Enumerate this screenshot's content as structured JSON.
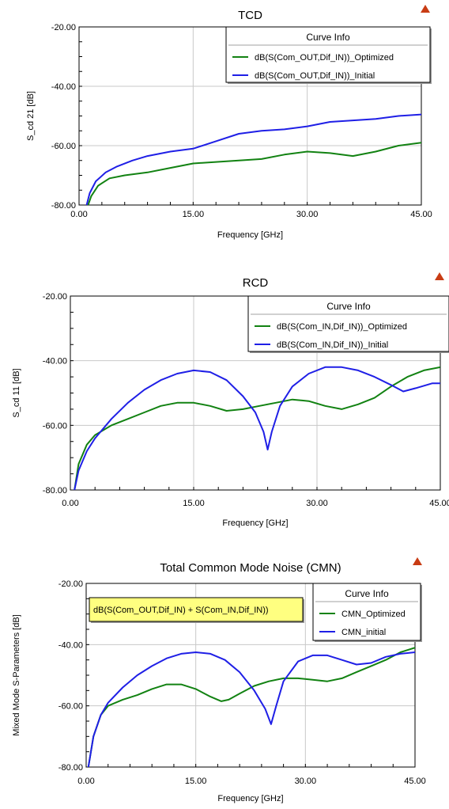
{
  "accent_colors": {
    "optimized": "#128212",
    "initial": "#1f1fe6",
    "annotation_bg": "#ffff80"
  },
  "chart_data": [
    {
      "type": "line",
      "title": "TCD",
      "xlabel": "Frequency [GHz]",
      "ylabel": "S_cd 21 [dB]",
      "xlim": [
        0,
        45
      ],
      "ylim": [
        -80,
        -20
      ],
      "xticks": [
        0,
        15,
        30,
        45
      ],
      "yticks": [
        -80,
        -60,
        -40,
        -20
      ],
      "xtick_labels": [
        "0.00",
        "15.00",
        "30.00",
        "45.00"
      ],
      "ytick_labels": [
        "-80.00",
        "-60.00",
        "-40.00",
        "-20.00"
      ],
      "grid": true,
      "legend_title": "Curve Info",
      "legend_placement": "top-right",
      "series": [
        {
          "name": "dB(S(Com_OUT,Dif_IN))_Optimized",
          "color": "#128212",
          "x": [
            1.2,
            1.6,
            2.5,
            4,
            6,
            9,
            12,
            15,
            18,
            21,
            24,
            27,
            30,
            33,
            36,
            39,
            42,
            45
          ],
          "y": [
            -80,
            -77,
            -73.5,
            -71,
            -70,
            -69,
            -67.5,
            -66,
            -65.5,
            -65,
            -64.5,
            -63,
            -62,
            -62.5,
            -63.5,
            -62,
            -60,
            -59
          ]
        },
        {
          "name": "dB(S(Com_OUT,Dif_IN))_Initial",
          "color": "#1f1fe6",
          "x": [
            1.0,
            1.4,
            2.2,
            3.5,
            5,
            7,
            9,
            12,
            15,
            18,
            21,
            24,
            27,
            30,
            33,
            36,
            39,
            42,
            45
          ],
          "y": [
            -80,
            -76,
            -72,
            -69,
            -67,
            -65,
            -63.5,
            -62,
            -61,
            -58.5,
            -56,
            -55,
            -54.5,
            -53.5,
            -52,
            -51.5,
            -51,
            -50,
            -49.5
          ]
        }
      ]
    },
    {
      "type": "line",
      "title": "RCD",
      "xlabel": "Frequency [GHz]",
      "ylabel": "S_cd 11 [dB]",
      "xlim": [
        0,
        45
      ],
      "ylim": [
        -80,
        -20
      ],
      "xticks": [
        0,
        15,
        30,
        45
      ],
      "yticks": [
        -80,
        -60,
        -40,
        -20
      ],
      "xtick_labels": [
        "0.00",
        "15.00",
        "30.00",
        "45.00"
      ],
      "ytick_labels": [
        "-80.00",
        "-60.00",
        "-40.00",
        "-20.00"
      ],
      "grid": true,
      "legend_title": "Curve Info",
      "legend_placement": "top-right",
      "series": [
        {
          "name": "dB(S(Com_IN,Dif_IN))_Optimized",
          "color": "#128212",
          "x": [
            0.5,
            1,
            2,
            3,
            5,
            7,
            9,
            11,
            13,
            15,
            17,
            19,
            21,
            23,
            25,
            27,
            29,
            31,
            33,
            35,
            37,
            39,
            41,
            43,
            45
          ],
          "y": [
            -80,
            -72,
            -66,
            -63,
            -60,
            -58,
            -56,
            -54,
            -53,
            -53,
            -54,
            -55.5,
            -55,
            -54,
            -53,
            -52,
            -52.5,
            -54,
            -55,
            -53.5,
            -51.5,
            -48,
            -45,
            -43,
            -42
          ]
        },
        {
          "name": "dB(S(Com_IN,Dif_IN))_Initial",
          "color": "#1f1fe6",
          "x": [
            0.5,
            1,
            2,
            3,
            5,
            7,
            9,
            11,
            13,
            15,
            17,
            19,
            21,
            22.5,
            23.5,
            24,
            24.5,
            25.5,
            27,
            29,
            31,
            33,
            35,
            37,
            39,
            40.5,
            42,
            44,
            45
          ],
          "y": [
            -80,
            -74,
            -68,
            -64,
            -58,
            -53,
            -49,
            -46,
            -44,
            -43,
            -43.5,
            -46,
            -51,
            -56,
            -62,
            -67.5,
            -62,
            -54,
            -48,
            -44,
            -42,
            -42,
            -43,
            -45,
            -47.5,
            -49.5,
            -48.5,
            -47,
            -47
          ]
        }
      ]
    },
    {
      "type": "line",
      "title": "Total Common Mode Noise (CMN)",
      "xlabel": "Frequency [GHz]",
      "ylabel": "Mixed Mode S-Parameters [dB]",
      "xlim": [
        0,
        45
      ],
      "ylim": [
        -80,
        -20
      ],
      "xticks": [
        0,
        15,
        30,
        45
      ],
      "yticks": [
        -80,
        -60,
        -40,
        -20
      ],
      "xtick_labels": [
        "0.00",
        "15.00",
        "30.00",
        "45.00"
      ],
      "ytick_labels": [
        "-80.00",
        "-60.00",
        "-40.00",
        "-20.00"
      ],
      "grid": true,
      "legend_title": "Curve Info",
      "legend_placement": "top-right",
      "annotation": "dB(S(Com_OUT,Dif_IN) + S(Com_IN,Dif_IN))",
      "series": [
        {
          "name": "CMN_Optimized",
          "color": "#128212",
          "x": [
            0.3,
            1,
            2,
            3,
            5,
            7,
            9,
            11,
            13,
            15,
            17,
            18.5,
            19.5,
            21,
            23,
            25,
            27,
            29,
            31,
            33,
            35,
            37,
            39,
            41,
            43,
            45
          ],
          "y": [
            -80,
            -70,
            -63,
            -60,
            -58,
            -56.5,
            -54.5,
            -53,
            -53,
            -54.5,
            -57,
            -58.5,
            -58,
            -56,
            -53.5,
            -52,
            -51,
            -51,
            -51.5,
            -52,
            -51,
            -49,
            -47,
            -45,
            -42.5,
            -41
          ]
        },
        {
          "name": "CMN_initial",
          "color": "#1f1fe6",
          "x": [
            0.3,
            1,
            2,
            3,
            5,
            7,
            9,
            11,
            13,
            15,
            17,
            19,
            21,
            23,
            24.5,
            25.3,
            26,
            27,
            29,
            31,
            33,
            35,
            37,
            39,
            41,
            43,
            45
          ],
          "y": [
            -80,
            -70,
            -63,
            -59,
            -54,
            -50,
            -47,
            -44.5,
            -43,
            -42.5,
            -43,
            -45,
            -49,
            -55,
            -61,
            -66,
            -60,
            -52,
            -45.5,
            -43.5,
            -43.5,
            -45,
            -46.5,
            -46,
            -44,
            -43,
            -42.5
          ]
        }
      ]
    }
  ]
}
